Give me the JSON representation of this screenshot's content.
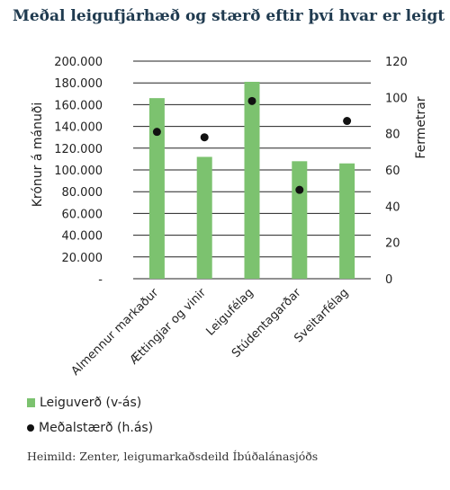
{
  "title": "Meðal leigufjárhæð og stærð eftir því hvar er leigt",
  "source": "Heimild: Zenter, leigumarkaðsdeild Íbúðalánasjóðs",
  "legend": {
    "bars_label": "Leiguverð (v-ás)",
    "dots_label": "Meðalstærð (h.ás)"
  },
  "colors": {
    "bar": "#7cc26f",
    "dot": "#111111",
    "title": "#1f3a4f"
  },
  "chart_data": {
    "type": "bar",
    "categories": [
      "Almennur markaður",
      "Ættingjar og vinir",
      "Leigufélag",
      "Stúdentagarðar",
      "Sveitarfélag"
    ],
    "series": [
      {
        "name": "Leiguverð (v-ás)",
        "type": "bar",
        "axis": "left",
        "values": [
          166000,
          112000,
          181000,
          108000,
          106000
        ]
      },
      {
        "name": "Meðalstærð (h.ás)",
        "type": "scatter",
        "axis": "right",
        "values": [
          81,
          78,
          98,
          49,
          87
        ]
      }
    ],
    "ylabel": "Krónur á mánuði",
    "y2label": "Fermetrar",
    "ylim": [
      0,
      200000
    ],
    "y2lim": [
      0,
      120
    ],
    "yticks": [
      "-",
      "20.000",
      "40.000",
      "60.000",
      "80.000",
      "100.000",
      "120.000",
      "140.000",
      "160.000",
      "180.000",
      "200.000"
    ],
    "y2ticks": [
      "0",
      "20",
      "40",
      "60",
      "80",
      "100",
      "120"
    ],
    "grid": true
  }
}
